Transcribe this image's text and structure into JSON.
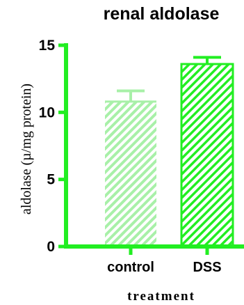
{
  "chart_data": {
    "type": "bar",
    "title": "renal aldolase",
    "xlabel": "treatment",
    "ylabel": "aldolase (µ/mg protein)",
    "categories": [
      "control",
      "DSS"
    ],
    "values": [
      10.8,
      13.6
    ],
    "error": [
      0.8,
      0.5
    ],
    "ylim": [
      0,
      15
    ],
    "yticks": [
      0,
      5,
      10,
      15
    ],
    "grid": false,
    "colors": {
      "axis": "#22ee22",
      "bars": [
        "#a8f0a8",
        "#22ee22"
      ]
    }
  }
}
